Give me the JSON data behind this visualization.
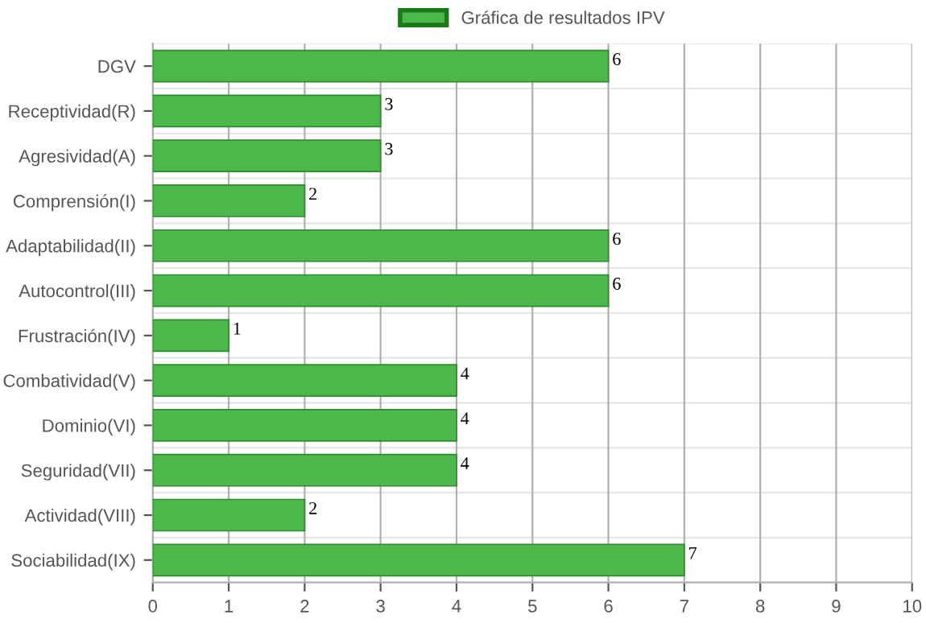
{
  "chart_data": {
    "type": "bar",
    "orientation": "horizontal",
    "categories": [
      "DGV",
      "Receptividad(R)",
      "Agresividad(A)",
      "Comprensión(I)",
      "Adaptabilidad(II)",
      "Autocontrol(III)",
      "Frustración(IV)",
      "Combatividad(V)",
      "Dominio(VI)",
      "Seguridad(VII)",
      "Actividad(VIII)",
      "Sociabilidad(IX)"
    ],
    "series": [
      {
        "name": "Gráfica de resultados IPV",
        "color": "#4cb84c",
        "values": [
          6,
          3,
          3,
          2,
          6,
          6,
          1,
          4,
          4,
          4,
          2,
          7
        ]
      }
    ],
    "xlim": [
      0,
      10
    ],
    "xticks": [
      0,
      1,
      2,
      3,
      4,
      5,
      6,
      7,
      8,
      9,
      10
    ],
    "grid": true,
    "legend": "top",
    "data_labels": true
  }
}
